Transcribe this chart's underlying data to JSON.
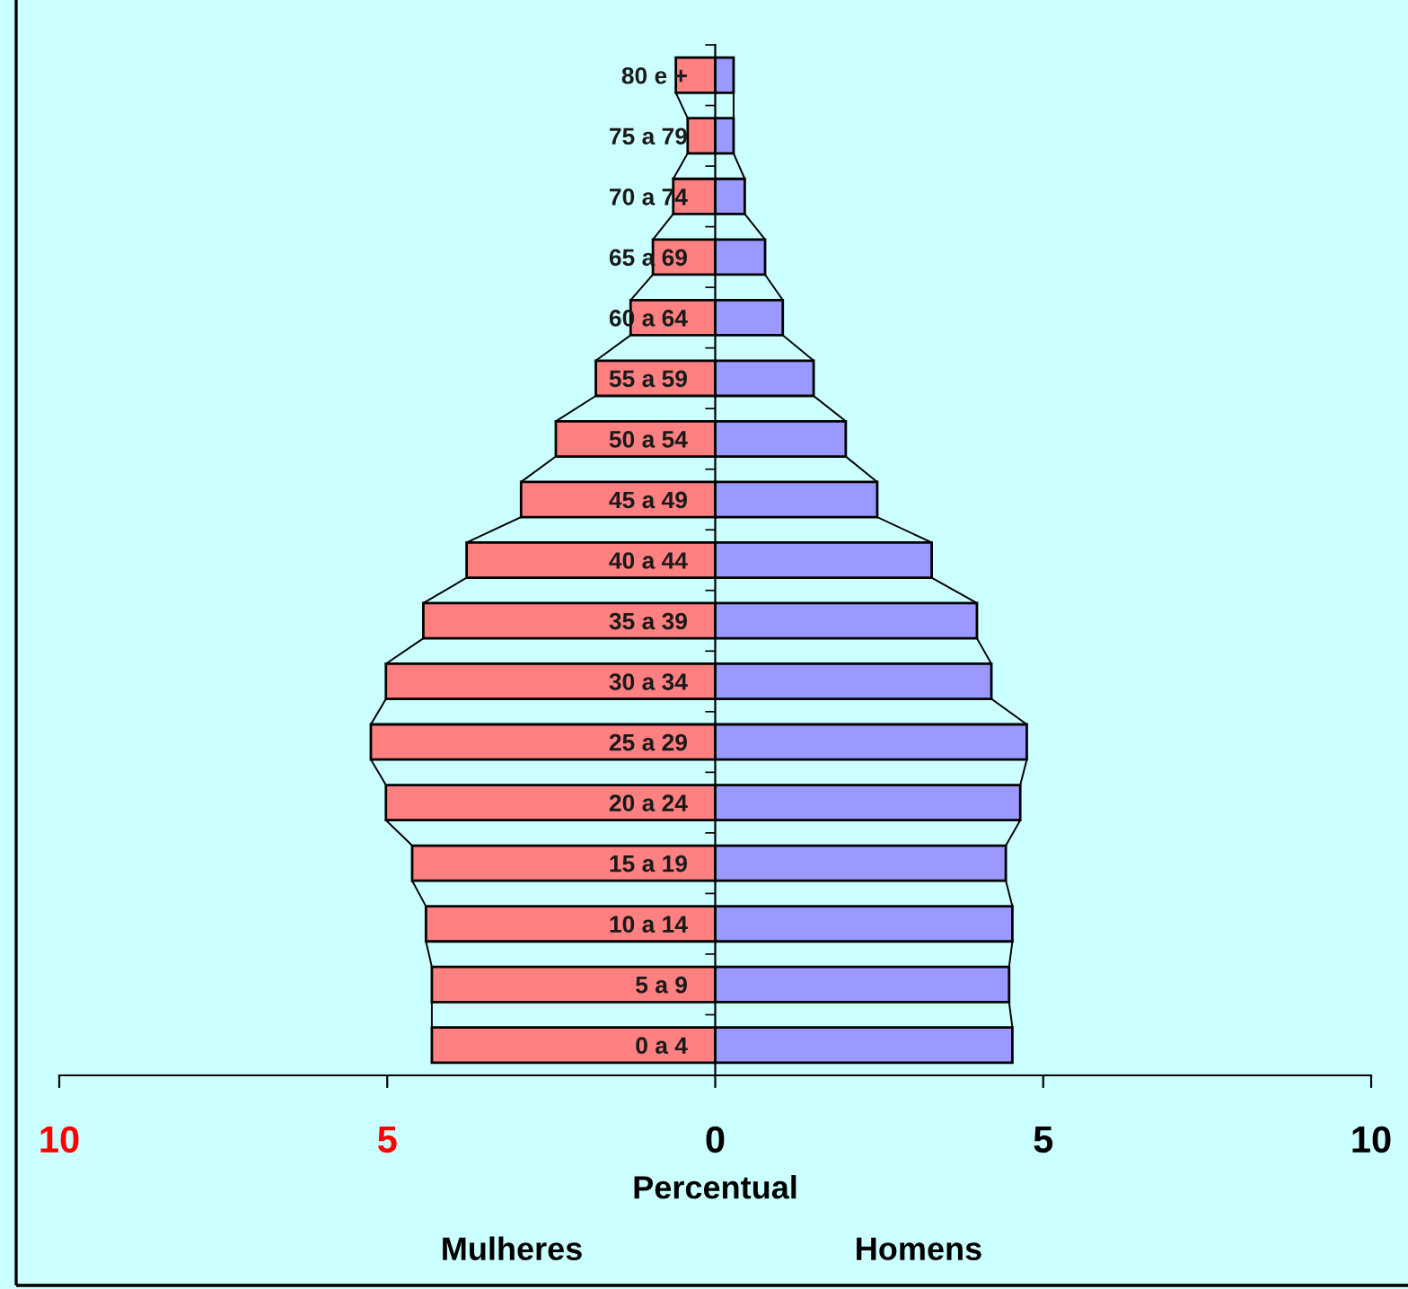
{
  "chart_data": {
    "type": "bar",
    "orientation": "horizontal",
    "stacked": true,
    "categories": [
      "80 e +",
      "75 a 79",
      "70 a 74",
      "65 a 69",
      "60 a 64",
      "55 a 59",
      "50 a 54",
      "45 a 49",
      "40 a 44",
      "35 a 39",
      "30 a 34",
      "25 a 29",
      "20 a 24",
      "15 a 19",
      "10 a 14",
      "5 a 9",
      "0 a 4"
    ],
    "series": [
      {
        "color": "#ff8080",
        "values": [
          -0.6,
          -0.42,
          -0.64,
          -0.95,
          -1.29,
          -1.82,
          -2.43,
          -2.96,
          -3.79,
          -4.45,
          -5.02,
          -5.25,
          -5.02,
          -4.62,
          -4.41,
          -4.32,
          -4.32
        ]
      },
      {
        "color": "#9999ff",
        "values": [
          0.28,
          0.28,
          0.45,
          0.76,
          1.03,
          1.5,
          1.99,
          2.47,
          3.3,
          3.99,
          4.21,
          4.75,
          4.65,
          4.43,
          4.53,
          4.48,
          4.53
        ]
      }
    ],
    "xlim": [
      -10,
      10
    ],
    "xticks": [
      {
        "value": -10,
        "label": "10"
      },
      {
        "value": -5,
        "label": "5"
      },
      0,
      5,
      10
    ],
    "xlabel": "Percentual",
    "annotations": [
      "Mulheres",
      "Homens"
    ]
  }
}
